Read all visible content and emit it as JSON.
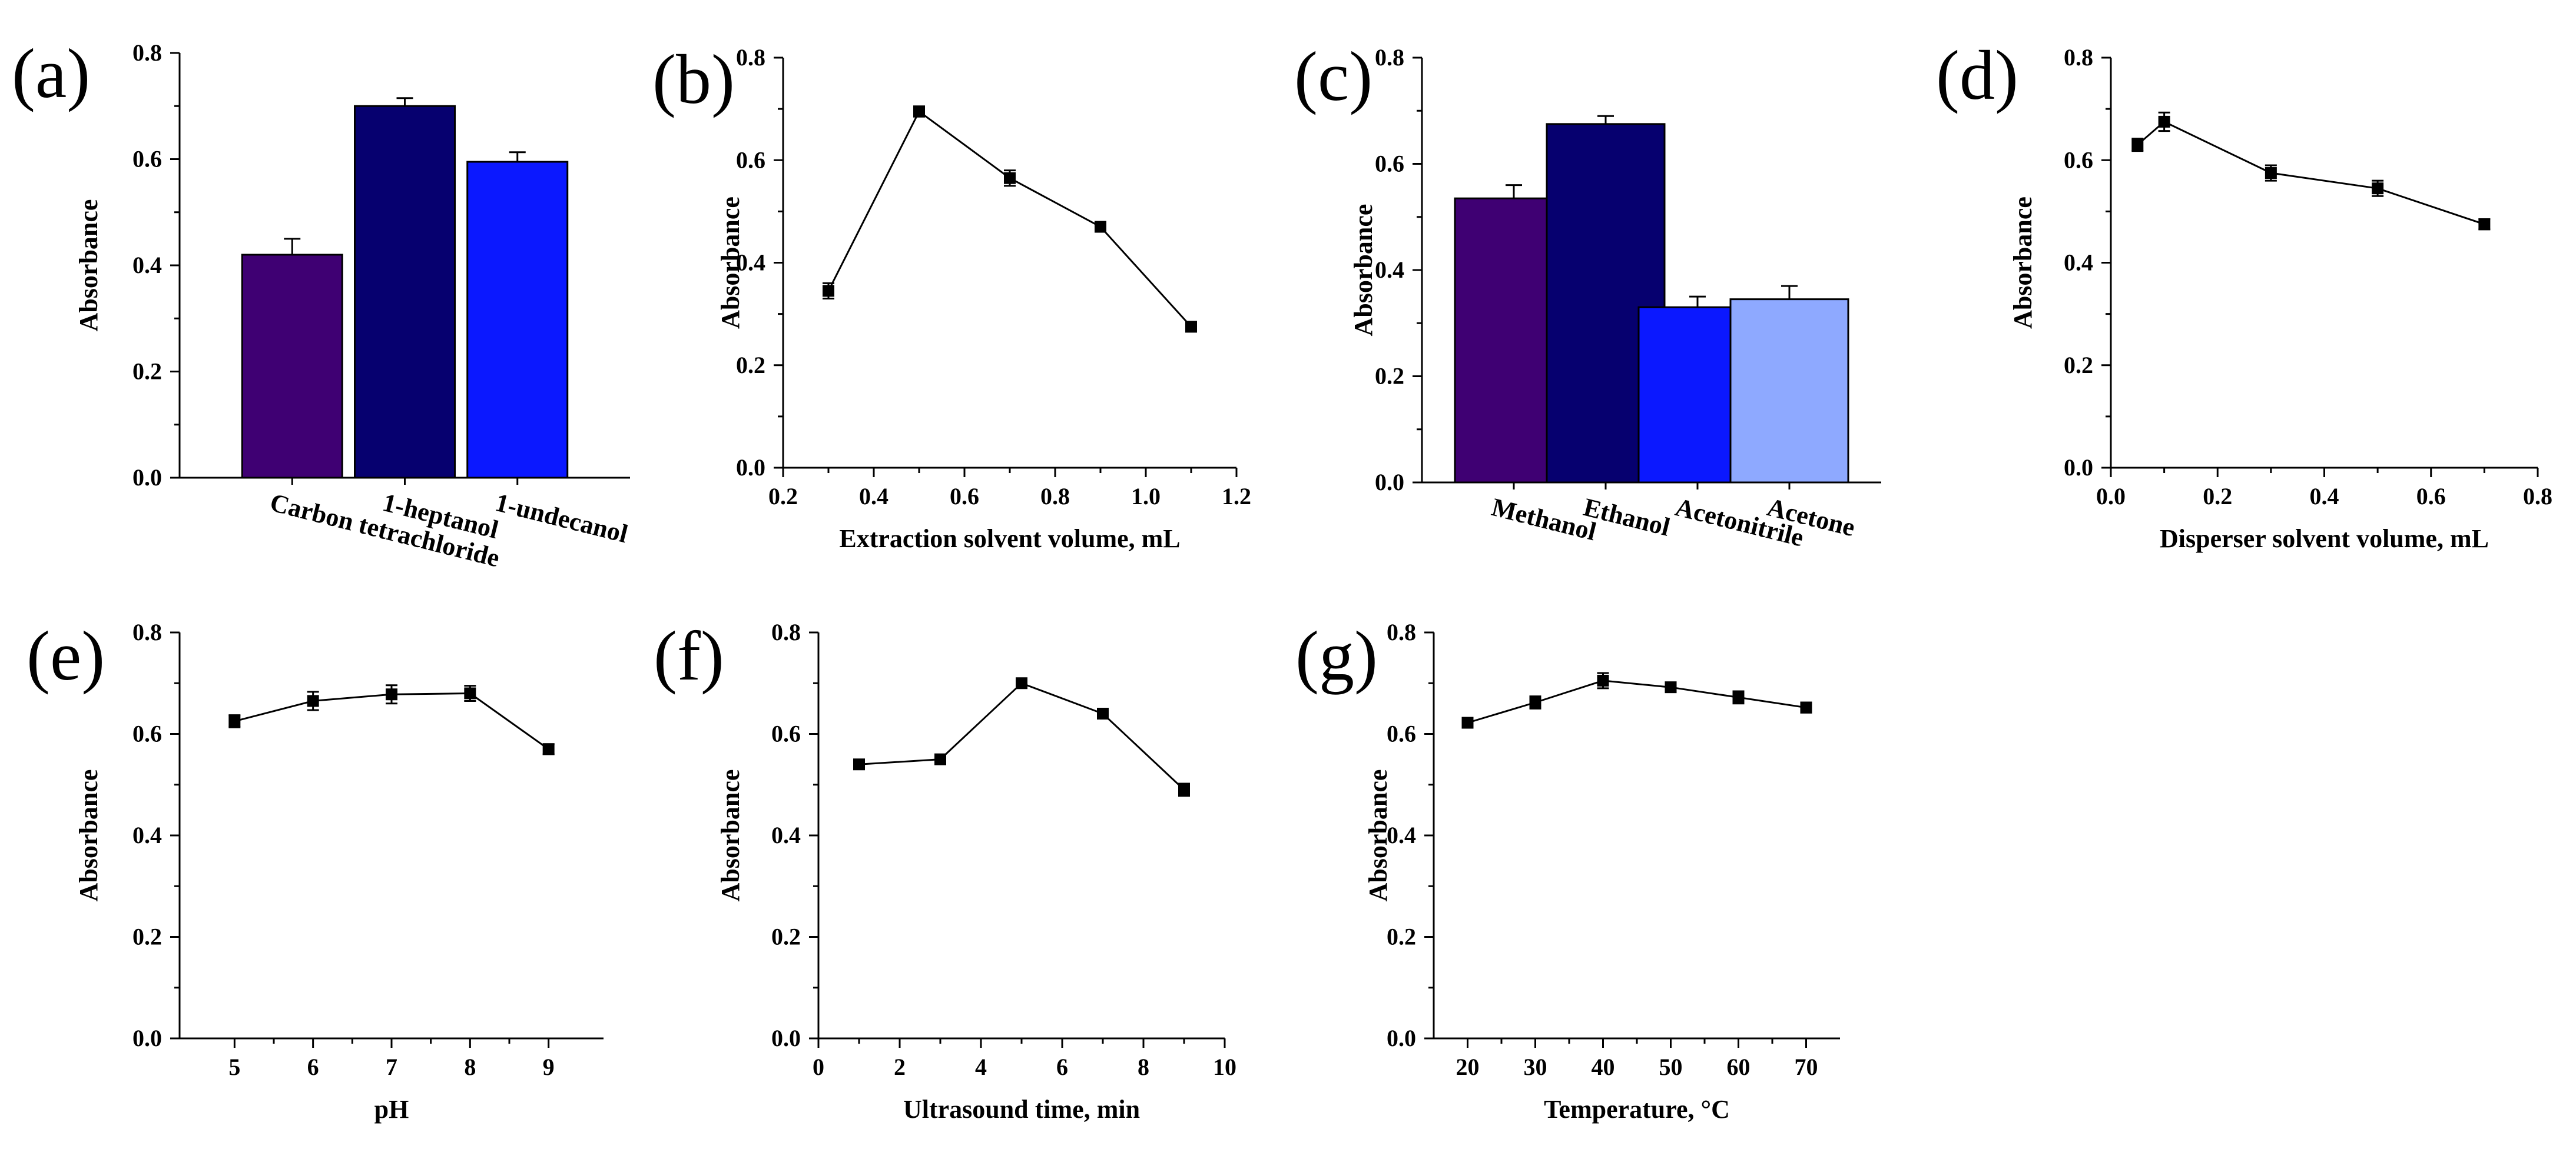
{
  "chart_data": [
    {
      "panel": "(a)",
      "type": "bar",
      "categories": [
        "Carbon tetrachloride",
        "1-heptanol",
        "1-undecanol"
      ],
      "values": [
        0.42,
        0.7,
        0.595
      ],
      "errors": [
        0.03,
        0.015,
        0.018
      ],
      "colors": [
        "#3f0073",
        "#06006f",
        "#0b18ff"
      ],
      "xlabel": "",
      "ylabel": "Absorbance",
      "ylim": [
        0,
        0.8
      ],
      "yticks": [
        0.0,
        0.2,
        0.4,
        0.6,
        0.8
      ]
    },
    {
      "panel": "(b)",
      "type": "line",
      "x": [
        0.3,
        0.5,
        0.7,
        0.9,
        1.1
      ],
      "y": [
        0.345,
        0.695,
        0.565,
        0.47,
        0.275
      ],
      "errors": [
        0.015,
        0.01,
        0.015,
        0.008,
        0.008
      ],
      "xlabel": "Extraction solvent volume, mL",
      "ylabel": "Absorbance",
      "xlim": [
        0.2,
        1.2
      ],
      "xticks": [
        0.2,
        0.4,
        0.6,
        0.8,
        1.0,
        1.2
      ],
      "ylim": [
        0,
        0.8
      ],
      "yticks": [
        0.0,
        0.2,
        0.4,
        0.6,
        0.8
      ]
    },
    {
      "panel": "(c)",
      "type": "bar",
      "categories": [
        "Methanol",
        "Ethanol",
        "Acetonitrile",
        "Acetone"
      ],
      "values": [
        0.535,
        0.675,
        0.33,
        0.345
      ],
      "errors": [
        0.025,
        0.015,
        0.02,
        0.025
      ],
      "colors": [
        "#3f0073",
        "#06006f",
        "#0b18ff",
        "#8ea9ff"
      ],
      "xlabel": "",
      "ylabel": "Absorbance",
      "ylim": [
        0,
        0.8
      ],
      "yticks": [
        0.0,
        0.2,
        0.4,
        0.6,
        0.8
      ]
    },
    {
      "panel": "(d)",
      "type": "line",
      "x": [
        0.05,
        0.1,
        0.3,
        0.5,
        0.7
      ],
      "y": [
        0.63,
        0.675,
        0.575,
        0.545,
        0.475
      ],
      "errors": [
        0.012,
        0.018,
        0.015,
        0.015,
        0.01
      ],
      "xlabel": "Disperser solvent volume, mL",
      "ylabel": "Absorbance",
      "xlim": [
        0.0,
        0.8
      ],
      "xticks": [
        0.0,
        0.2,
        0.4,
        0.6,
        0.8
      ],
      "ylim": [
        0,
        0.8
      ],
      "yticks": [
        0.0,
        0.2,
        0.4,
        0.6,
        0.8
      ]
    },
    {
      "panel": "(e)",
      "type": "line",
      "x": [
        5,
        6,
        7,
        8,
        9
      ],
      "y": [
        0.625,
        0.665,
        0.678,
        0.68,
        0.57
      ],
      "errors": [
        0.012,
        0.018,
        0.018,
        0.015,
        0.01
      ],
      "xlabel": "pH",
      "ylabel": "Absorbance",
      "xlim": [
        4.3,
        9.7
      ],
      "xticks": [
        5,
        6,
        7,
        8,
        9
      ],
      "ylim": [
        0,
        0.8
      ],
      "yticks": [
        0.0,
        0.2,
        0.4,
        0.6,
        0.8
      ]
    },
    {
      "panel": "(f)",
      "type": "line",
      "x": [
        1,
        3,
        5,
        7,
        9
      ],
      "y": [
        0.54,
        0.55,
        0.7,
        0.64,
        0.49
      ],
      "errors": [
        0.008,
        0.008,
        0.008,
        0.008,
        0.012
      ],
      "xlabel": "Ultrasound time, min",
      "ylabel": "Absorbance",
      "xlim": [
        0,
        10
      ],
      "xticks": [
        0,
        2,
        4,
        6,
        8,
        10
      ],
      "ylim": [
        0,
        0.8
      ],
      "yticks": [
        0.0,
        0.2,
        0.4,
        0.6,
        0.8
      ]
    },
    {
      "panel": "(g)",
      "type": "line",
      "x": [
        20,
        30,
        40,
        50,
        60,
        70
      ],
      "y": [
        0.622,
        0.662,
        0.705,
        0.692,
        0.672,
        0.652
      ],
      "errors": [
        0.008,
        0.012,
        0.015,
        0.008,
        0.012,
        0.01
      ],
      "xlabel": "Temperature, °C",
      "ylabel": "Absorbance",
      "xlim": [
        15,
        75
      ],
      "xticks": [
        20,
        30,
        40,
        50,
        60,
        70
      ],
      "ylim": [
        0,
        0.8
      ],
      "yticks": [
        0.0,
        0.2,
        0.4,
        0.6,
        0.8
      ]
    }
  ]
}
